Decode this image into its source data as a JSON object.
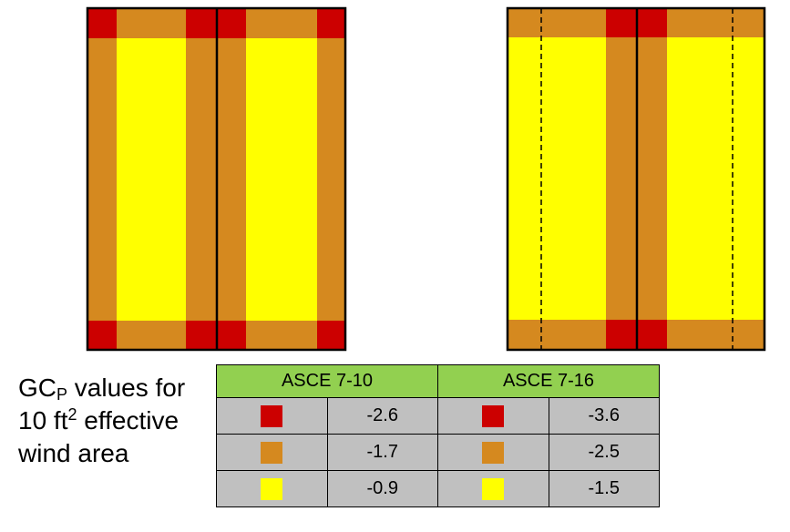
{
  "colors": {
    "corner": "#cc0000",
    "edge": "#d5891f",
    "interior": "#ffff00",
    "header_bg": "#92d050",
    "cell_bg": "#c0c0c0"
  },
  "caption": {
    "line1_prefix": "GC",
    "line1_sub": "P",
    "line1_suffix": " values for",
    "line2_prefix": "10 ft",
    "line2_sup": "2",
    "line2_suffix": " effective",
    "line3": "wind area"
  },
  "table": {
    "headers": [
      "ASCE 7-10",
      "ASCE 7-16"
    ],
    "rows": [
      {
        "zone": "corner",
        "v710": "-2.6",
        "v716": "-3.6"
      },
      {
        "zone": "edge",
        "v710": "-1.7",
        "v716": "-2.5"
      },
      {
        "zone": "interior",
        "v710": "-0.9",
        "v716": "-1.5"
      }
    ]
  }
}
